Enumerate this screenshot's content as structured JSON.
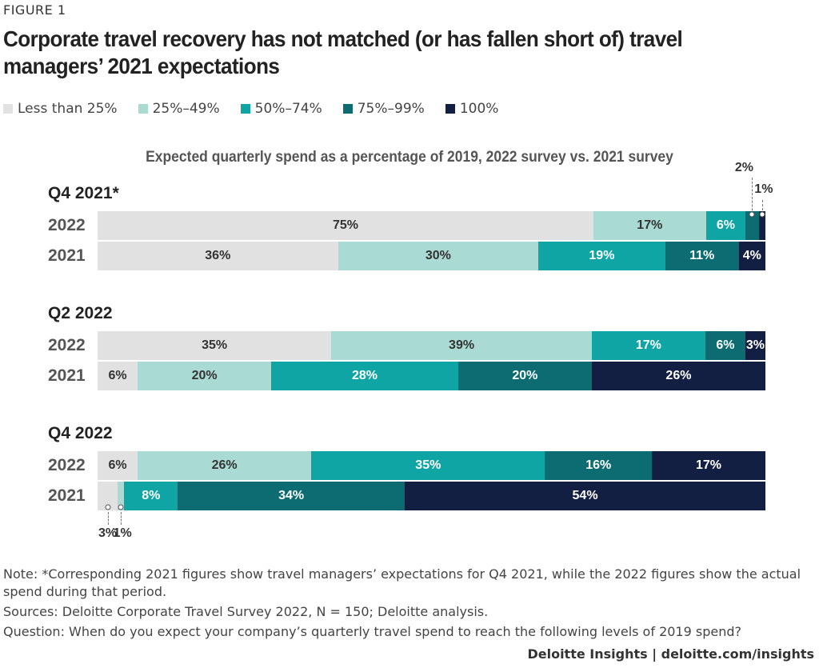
{
  "figure_label": "FIGURE 1",
  "chart_data": {
    "type": "bar",
    "orientation": "horizontal-stacked",
    "title": "Corporate travel recovery has not matched (or has fallen short of) travel managers’ 2021 expectations",
    "subtitle": "Expected quarterly spend as a percentage of 2019, 2022 survey vs. 2021 survey",
    "legend_position": "top-left",
    "grid": false,
    "series": [
      {
        "name": "Less than 25%",
        "color": "#e1e1e1",
        "text_color": "#333333"
      },
      {
        "name": "25%–49%",
        "color": "#a9dbd4",
        "text_color": "#333333"
      },
      {
        "name": "50%–74%",
        "color": "#0fa5a5",
        "text_color": "#ffffff"
      },
      {
        "name": "75%–99%",
        "color": "#0c6c71",
        "text_color": "#ffffff"
      },
      {
        "name": "100%",
        "color": "#121e42",
        "text_color": "#ffffff"
      }
    ],
    "groups": [
      {
        "label": "Q4 2021*",
        "rows": [
          {
            "label": "2022",
            "values": [
              75,
              17,
              6,
              2,
              1
            ],
            "callouts": "above"
          },
          {
            "label": "2021",
            "values": [
              36,
              30,
              19,
              11,
              4
            ]
          }
        ]
      },
      {
        "label": "Q2 2022",
        "rows": [
          {
            "label": "2022",
            "values": [
              35,
              39,
              17,
              6,
              3
            ]
          },
          {
            "label": "2021",
            "values": [
              6,
              20,
              28,
              20,
              26
            ]
          }
        ]
      },
      {
        "label": "Q4 2022",
        "rows": [
          {
            "label": "2022",
            "values": [
              6,
              26,
              35,
              16,
              17
            ]
          },
          {
            "label": "2021",
            "values": [
              3,
              1,
              8,
              34,
              54
            ],
            "callouts": "below"
          }
        ]
      }
    ],
    "value_suffix": "%"
  },
  "notes": {
    "note": "Note: *Corresponding 2021 figures show travel managers’ expectations for Q4 2021, while the 2022 figures show the actual spend during that period.",
    "sources": "Sources: Deloitte Corporate Travel Survey 2022, N = 150; Deloitte analysis.",
    "question": "Question: When do you expect your company’s quarterly travel spend to reach the following levels of 2019 spend?"
  },
  "brand": "Deloitte Insights | deloitte.com/insights"
}
